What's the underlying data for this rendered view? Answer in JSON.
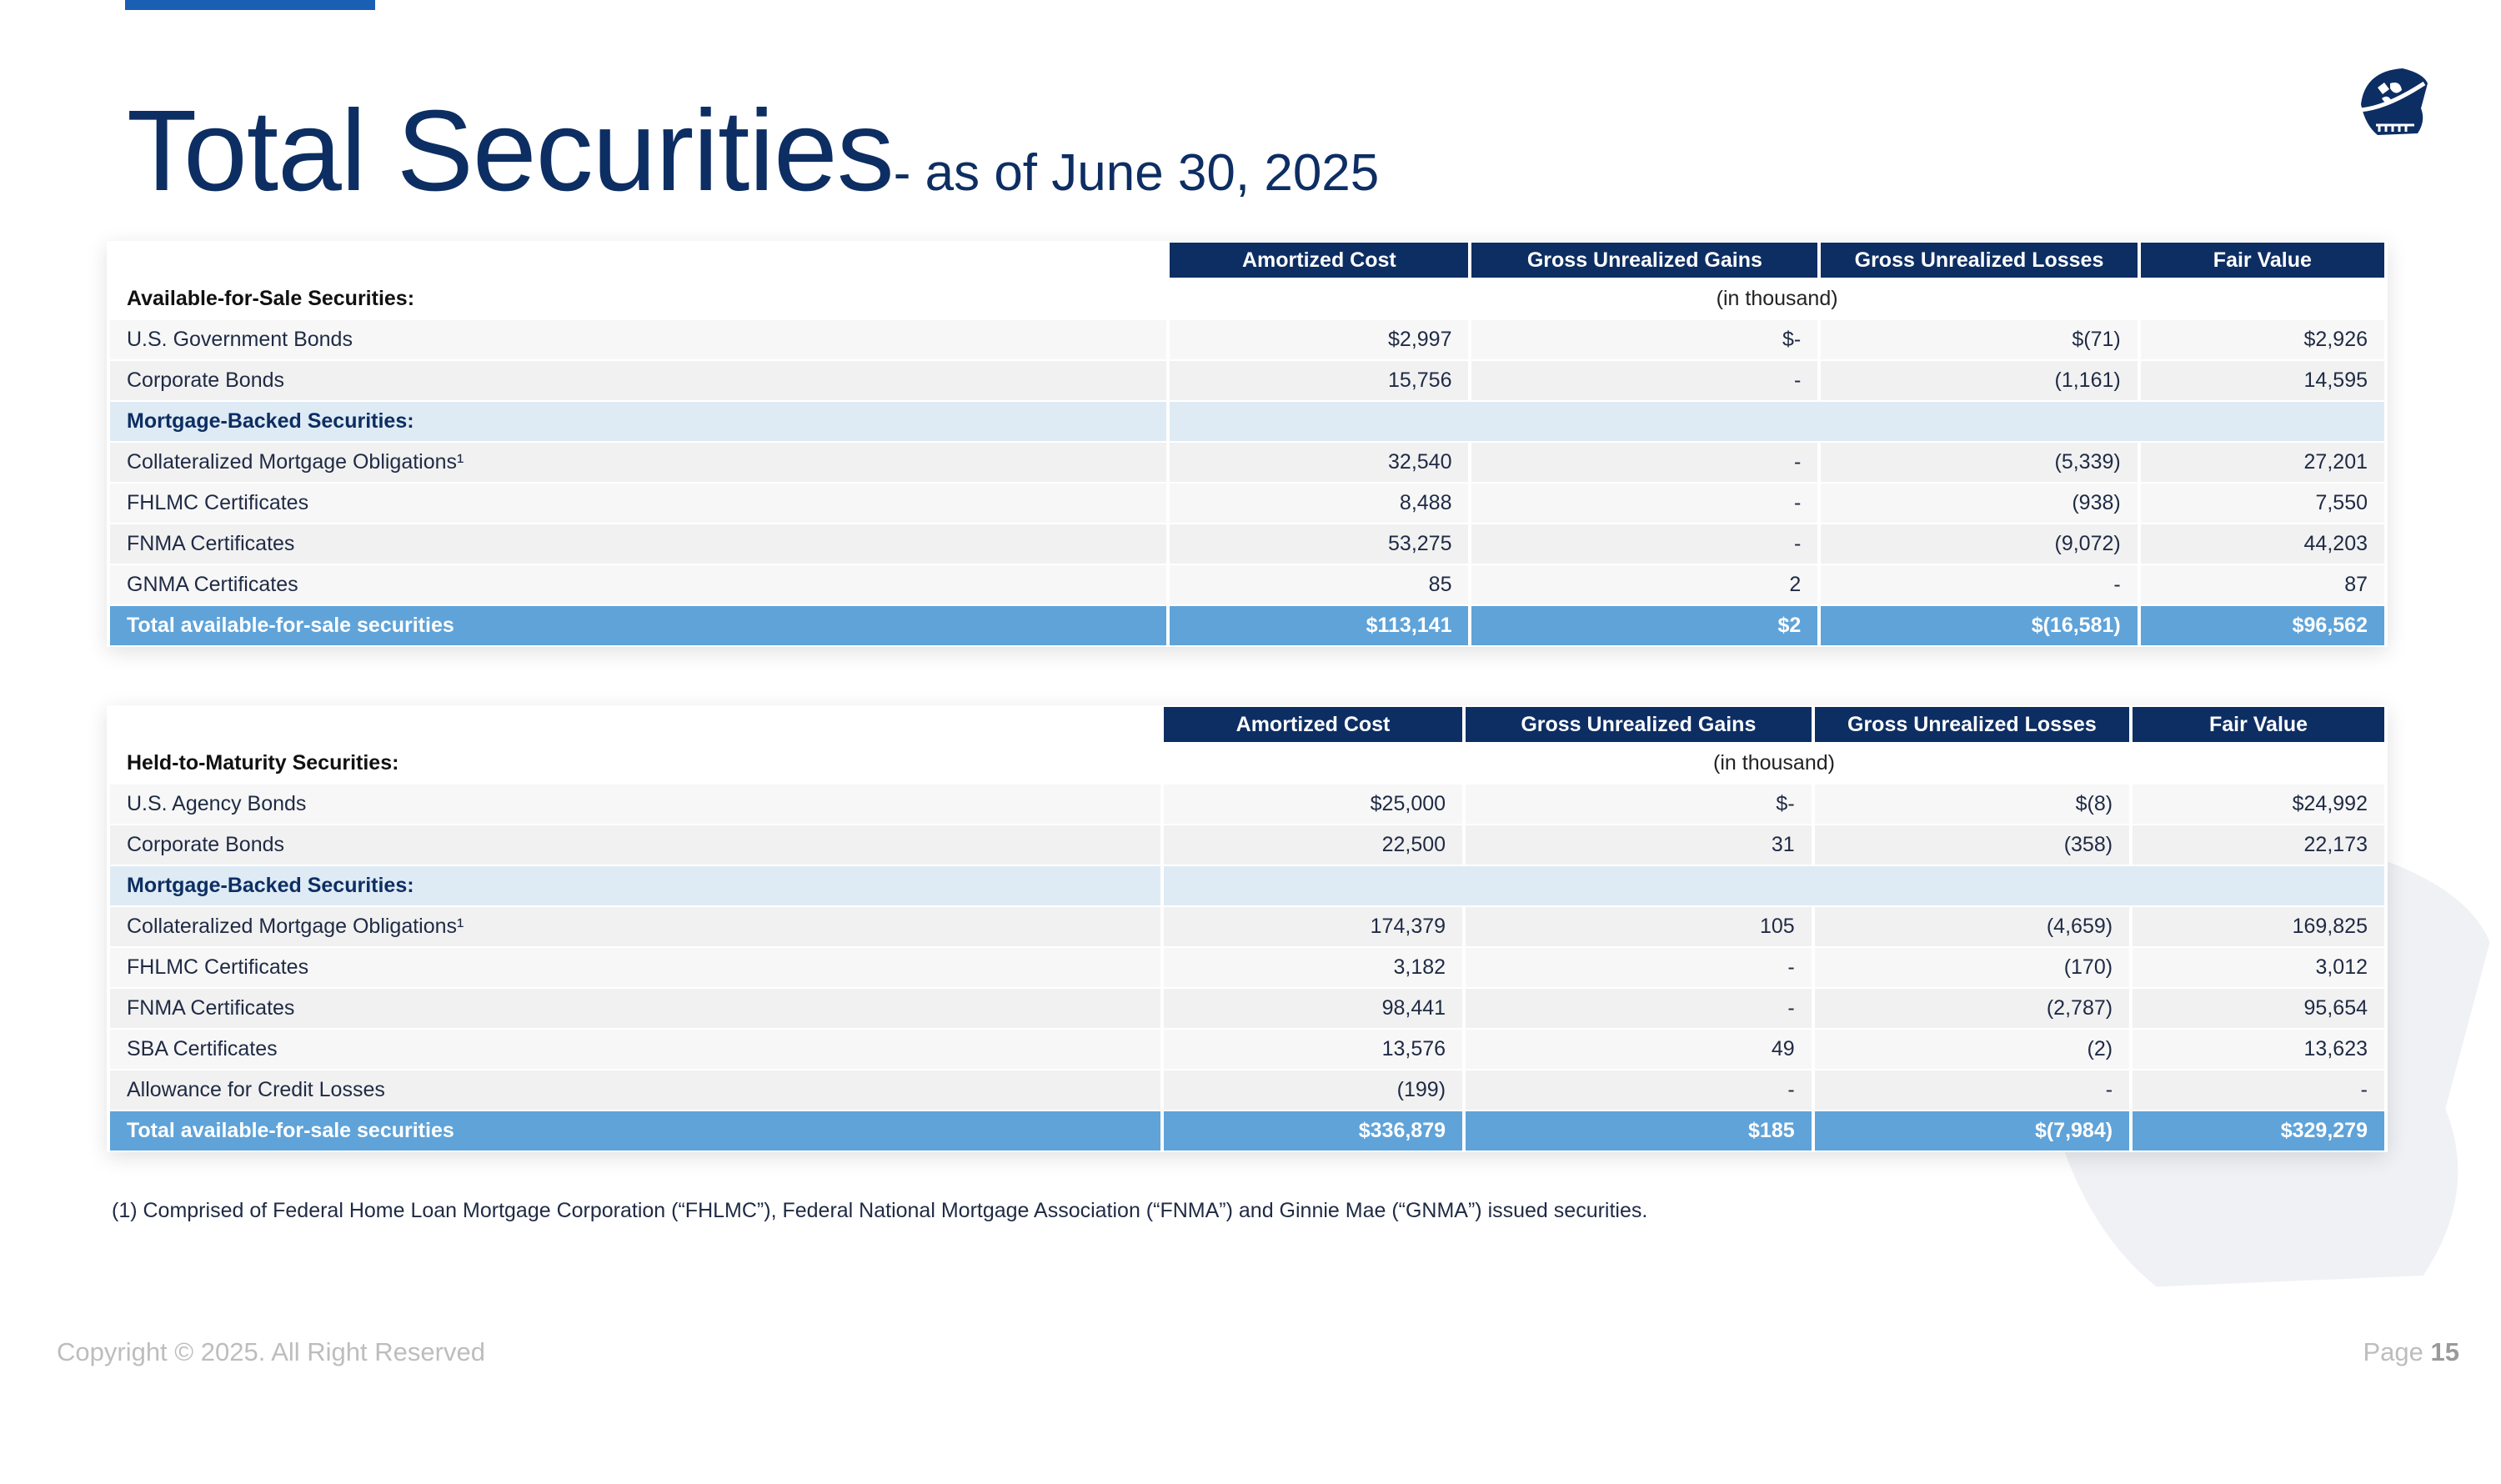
{
  "title": {
    "main": "Total Securities",
    "sub": "- as of June 30, 2025"
  },
  "colors": {
    "header": "#0d2e63",
    "total": "#5fa3d9",
    "subsection": "#deebf5",
    "accent_bar": "#1a5fb4"
  },
  "logo": {
    "icon": "skull-helmet-logo"
  },
  "columns": [
    "Amortized Cost",
    "Gross Unrealized Gains",
    "Gross Unrealized Losses",
    "Fair Value"
  ],
  "afs": {
    "heading": "Available-for-Sale Securities:",
    "unit": "(in thousand)",
    "rows": [
      {
        "type": "row",
        "label": "U.S. Government Bonds",
        "values": [
          "$2,997",
          "$-",
          "$(71)",
          "$2,926"
        ]
      },
      {
        "type": "row",
        "label": "Corporate Bonds",
        "values": [
          "15,756",
          "-",
          "(1,161)",
          "14,595"
        ]
      },
      {
        "type": "sub",
        "label": "Mortgage-Backed Securities:"
      },
      {
        "type": "row",
        "label": "Collateralized Mortgage Obligations¹",
        "values": [
          "32,540",
          "-",
          "(5,339)",
          "27,201"
        ]
      },
      {
        "type": "row",
        "label": "FHLMC Certificates",
        "values": [
          "8,488",
          "-",
          "(938)",
          "7,550"
        ]
      },
      {
        "type": "row",
        "label": "FNMA Certificates",
        "values": [
          "53,275",
          "-",
          "(9,072)",
          "44,203"
        ]
      },
      {
        "type": "row",
        "label": "GNMA Certificates",
        "values": [
          "85",
          "2",
          "-",
          "87"
        ]
      },
      {
        "type": "total",
        "label": "Total available-for-sale securities",
        "values": [
          "$113,141",
          "$2",
          "$(16,581)",
          "$96,562"
        ]
      }
    ]
  },
  "htm": {
    "heading": "Held-to-Maturity Securities:",
    "unit": "(in thousand)",
    "rows": [
      {
        "type": "row",
        "label": "U.S. Agency Bonds",
        "values": [
          "$25,000",
          "$-",
          "$(8)",
          "$24,992"
        ]
      },
      {
        "type": "row",
        "label": "Corporate Bonds",
        "values": [
          "22,500",
          "31",
          "(358)",
          "22,173"
        ]
      },
      {
        "type": "sub",
        "label": "Mortgage-Backed Securities:"
      },
      {
        "type": "row",
        "label": "Collateralized Mortgage Obligations¹",
        "values": [
          "174,379",
          "105",
          "(4,659)",
          "169,825"
        ]
      },
      {
        "type": "row",
        "label": "FHLMC Certificates",
        "values": [
          "3,182",
          "-",
          "(170)",
          "3,012"
        ]
      },
      {
        "type": "row",
        "label": "FNMA Certificates",
        "values": [
          "98,441",
          "-",
          "(2,787)",
          "95,654"
        ]
      },
      {
        "type": "row",
        "label": "SBA Certificates",
        "values": [
          "13,576",
          "49",
          "(2)",
          "13,623"
        ]
      },
      {
        "type": "row",
        "label": "Allowance for Credit Losses",
        "values": [
          "(199)",
          "-",
          "-",
          "-"
        ]
      },
      {
        "type": "total",
        "label": "Total available-for-sale securities",
        "values": [
          "$336,879",
          "$185",
          "$(7,984)",
          "$329,279"
        ]
      }
    ]
  },
  "footnote": "(1) Comprised of Federal Home Loan Mortgage Corporation (“FHLMC”), Federal National Mortgage Association (“FNMA”) and Ginnie Mae (“GNMA”) issued securities.",
  "footer": {
    "copyright": "Copyright © 2025. All Right Reserved",
    "page_label": "Page",
    "page_number": "15"
  }
}
